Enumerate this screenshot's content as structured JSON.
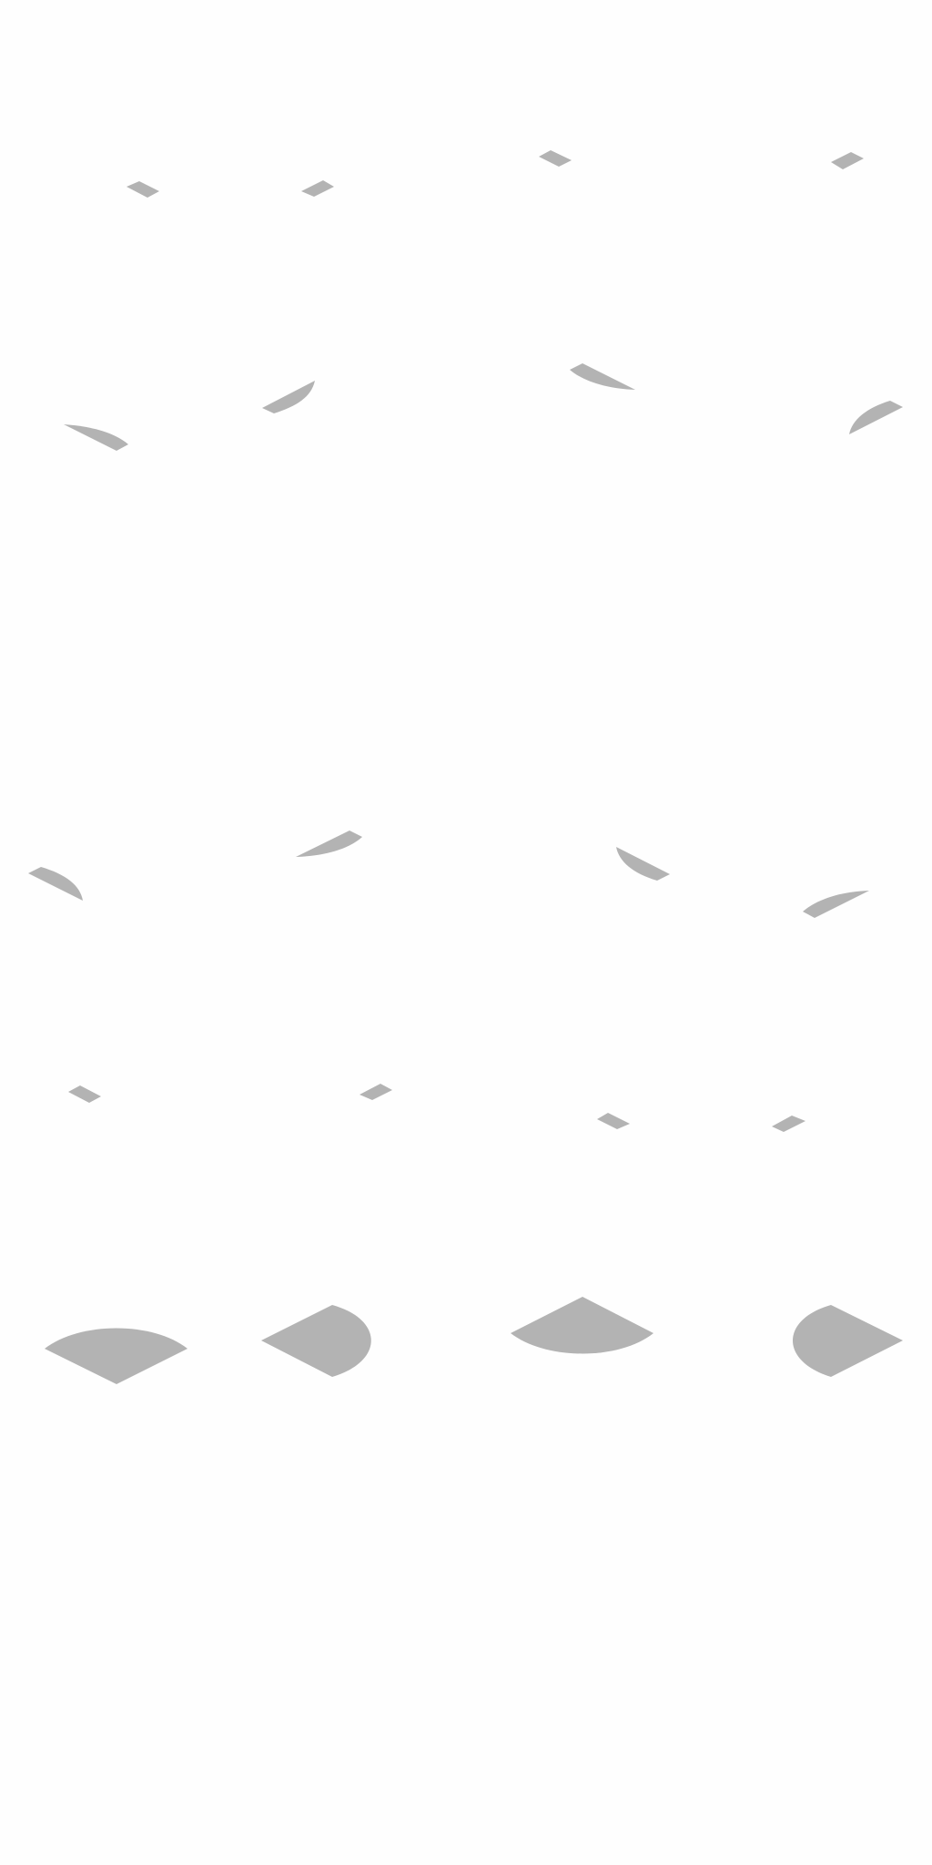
{
  "sheet": {
    "background_color": "#fefefe",
    "shadow_color": "#b3b3b3",
    "rows": [
      {
        "name": "row-small-tile-shadows",
        "frames": [
          {
            "name": "tile-shadow-southwest"
          },
          {
            "name": "tile-shadow-southeast"
          },
          {
            "name": "tile-shadow-northwest"
          },
          {
            "name": "tile-shadow-northeast"
          }
        ]
      },
      {
        "name": "row-curved-shadows-a",
        "frames": [
          {
            "name": "curved-shadow-west"
          },
          {
            "name": "curved-shadow-east"
          },
          {
            "name": "curved-shadow-north"
          },
          {
            "name": "curved-shadow-northeast"
          }
        ]
      },
      {
        "name": "row-curved-shadows-b",
        "frames": [
          {
            "name": "curved-shadow-southwest"
          },
          {
            "name": "curved-shadow-southeast"
          },
          {
            "name": "curved-shadow-south"
          },
          {
            "name": "curved-shadow-east-lower"
          }
        ]
      },
      {
        "name": "row-small-tile-shadows-b",
        "frames": [
          {
            "name": "tile-shadow-b-southwest"
          },
          {
            "name": "tile-shadow-b-southeast"
          },
          {
            "name": "tile-shadow-b-northwest"
          },
          {
            "name": "tile-shadow-b-northeast"
          }
        ]
      },
      {
        "name": "row-large-half-shadows",
        "frames": [
          {
            "name": "half-shadow-bottom"
          },
          {
            "name": "half-shadow-right"
          },
          {
            "name": "half-shadow-top"
          },
          {
            "name": "half-shadow-left"
          }
        ]
      }
    ]
  }
}
